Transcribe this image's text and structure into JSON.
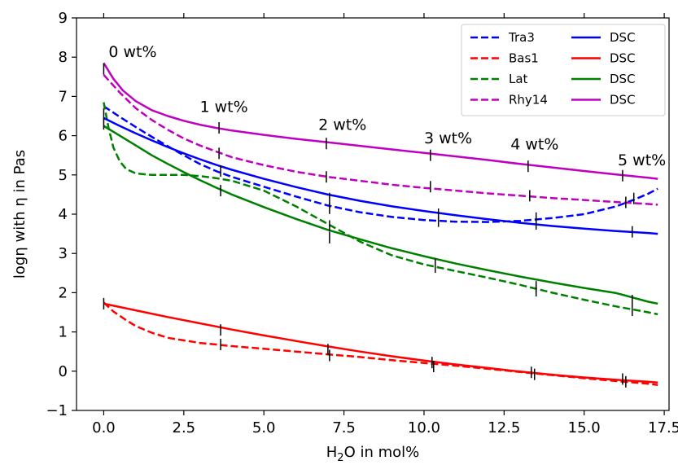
{
  "chart_data": {
    "type": "line",
    "xlabel": "H2O in mol%",
    "xlabel_parts": {
      "pre": "H",
      "sub": "2",
      "post": "O in mol%"
    },
    "ylabel": "logη with η in Pas",
    "xlim": [
      -0.85,
      17.65
    ],
    "ylim": [
      -1,
      9
    ],
    "xticks": [
      0.0,
      2.5,
      5.0,
      7.5,
      10.0,
      12.5,
      15.0,
      17.5
    ],
    "xtick_labels": [
      "0.0",
      "2.5",
      "5.0",
      "7.5",
      "10.0",
      "12.5",
      "15.0",
      "17.5"
    ],
    "yticks": [
      -1,
      0,
      1,
      2,
      3,
      4,
      5,
      6,
      7,
      8,
      9
    ],
    "ytick_labels": [
      "−1",
      "0",
      "1",
      "2",
      "3",
      "4",
      "5",
      "6",
      "7",
      "8",
      "9"
    ],
    "colors": {
      "blue": "#0000ff",
      "red": "#ff0000",
      "green": "#008000",
      "magenta": "#bf00bf"
    },
    "series": [
      {
        "name": "Tra3",
        "color": "blue",
        "dash": true,
        "x": [
          0,
          0.5,
          1,
          1.5,
          2,
          2.5,
          3,
          3.5,
          4,
          5,
          6,
          7,
          8,
          9,
          10,
          11,
          12,
          13,
          14,
          15,
          16,
          16.5,
          17,
          17.3
        ],
        "y": [
          6.75,
          6.48,
          6.22,
          5.97,
          5.73,
          5.5,
          5.28,
          5.1,
          4.95,
          4.7,
          4.45,
          4.22,
          4.05,
          3.93,
          3.85,
          3.81,
          3.8,
          3.83,
          3.9,
          4.0,
          4.2,
          4.35,
          4.52,
          4.65
        ]
      },
      {
        "name": "Bas1",
        "color": "red",
        "dash": true,
        "x": [
          0,
          0.3,
          0.7,
          1,
          1.5,
          2,
          3,
          4,
          5,
          6,
          7,
          8,
          9,
          10,
          11,
          12,
          13,
          14,
          15,
          16,
          17,
          17.3
        ],
        "y": [
          1.75,
          1.52,
          1.3,
          1.15,
          0.98,
          0.85,
          0.72,
          0.64,
          0.57,
          0.5,
          0.43,
          0.36,
          0.28,
          0.21,
          0.14,
          0.06,
          -0.02,
          -0.1,
          -0.18,
          -0.25,
          -0.32,
          -0.35
        ]
      },
      {
        "name": "Lat",
        "color": "green",
        "dash": true,
        "x": [
          0,
          0.15,
          0.3,
          0.5,
          0.7,
          1,
          1.5,
          2,
          2.5,
          3,
          3.5,
          4,
          5,
          6,
          7,
          8,
          9,
          10,
          11,
          12,
          13,
          14,
          15,
          16,
          17,
          17.3
        ],
        "y": [
          6.85,
          6.2,
          5.7,
          5.35,
          5.15,
          5.04,
          5.0,
          5.0,
          5.0,
          4.97,
          4.92,
          4.85,
          4.6,
          4.2,
          3.75,
          3.3,
          2.95,
          2.72,
          2.55,
          2.38,
          2.2,
          2.0,
          1.82,
          1.65,
          1.5,
          1.45
        ]
      },
      {
        "name": "Rhy14",
        "color": "magenta",
        "dash": true,
        "x": [
          0,
          0.5,
          1,
          1.5,
          2,
          2.5,
          3,
          3.5,
          4,
          5,
          6,
          7,
          8,
          9,
          10,
          11,
          12,
          13,
          14,
          15,
          16,
          17,
          17.3
        ],
        "y": [
          7.55,
          7.1,
          6.7,
          6.4,
          6.15,
          5.93,
          5.75,
          5.6,
          5.45,
          5.25,
          5.08,
          4.95,
          4.85,
          4.75,
          4.67,
          4.6,
          4.53,
          4.47,
          4.41,
          4.36,
          4.31,
          4.26,
          4.24
        ]
      },
      {
        "name": "DSC",
        "color": "blue",
        "dash": false,
        "x": [
          0,
          0.5,
          1,
          1.5,
          2,
          2.5,
          3,
          3.5,
          4,
          5,
          6,
          7,
          8,
          9,
          10,
          11,
          12,
          13,
          14,
          15,
          16,
          17,
          17.3
        ],
        "y": [
          6.45,
          6.25,
          6.06,
          5.88,
          5.71,
          5.55,
          5.4,
          5.26,
          5.13,
          4.9,
          4.69,
          4.5,
          4.34,
          4.2,
          4.08,
          3.97,
          3.87,
          3.78,
          3.7,
          3.63,
          3.57,
          3.52,
          3.5
        ]
      },
      {
        "name": "DSC",
        "color": "red",
        "dash": false,
        "x": [
          0,
          1,
          2,
          3,
          4,
          5,
          6,
          7,
          8,
          9,
          10,
          11,
          12,
          13,
          14,
          15,
          16,
          17,
          17.3
        ],
        "y": [
          1.72,
          1.55,
          1.38,
          1.22,
          1.06,
          0.91,
          0.77,
          0.63,
          0.5,
          0.38,
          0.27,
          0.17,
          0.08,
          -0.01,
          -0.09,
          -0.16,
          -0.22,
          -0.27,
          -0.29
        ]
      },
      {
        "name": "DSC",
        "color": "green",
        "dash": false,
        "x": [
          0,
          0.5,
          1,
          1.5,
          2,
          2.5,
          3,
          3.5,
          4,
          5,
          6,
          7,
          8,
          9,
          10,
          11,
          12,
          13,
          14,
          15,
          16,
          17,
          17.3
        ],
        "y": [
          6.25,
          6.0,
          5.75,
          5.5,
          5.28,
          5.07,
          4.87,
          4.68,
          4.5,
          4.18,
          3.88,
          3.6,
          3.36,
          3.13,
          2.93,
          2.74,
          2.57,
          2.41,
          2.26,
          2.12,
          1.99,
          1.77,
          1.72
        ]
      },
      {
        "name": "DSC",
        "color": "magenta",
        "dash": false,
        "x": [
          0,
          0.3,
          0.6,
          1,
          1.5,
          2,
          2.5,
          3,
          3.5,
          4,
          5,
          6,
          7,
          8,
          9,
          10,
          11,
          12,
          13,
          14,
          15,
          16,
          17,
          17.3
        ],
        "y": [
          7.85,
          7.45,
          7.15,
          6.88,
          6.65,
          6.5,
          6.38,
          6.28,
          6.2,
          6.13,
          6.02,
          5.92,
          5.83,
          5.74,
          5.65,
          5.56,
          5.47,
          5.38,
          5.28,
          5.19,
          5.1,
          5.01,
          4.93,
          4.9
        ]
      }
    ],
    "marker_ticks": [
      {
        "x": 0,
        "y": 7.7
      },
      {
        "x": 0,
        "y": 6.55
      },
      {
        "x": 0,
        "y": 6.3
      },
      {
        "x": 0,
        "y": 1.72
      },
      {
        "x": 3.6,
        "y": 6.2
      },
      {
        "x": 3.6,
        "y": 5.55
      },
      {
        "x": 3.65,
        "y": 5.1
      },
      {
        "x": 3.65,
        "y": 4.6
      },
      {
        "x": 3.65,
        "y": 1.05
      },
      {
        "x": 3.65,
        "y": 0.68
      },
      {
        "x": 6.95,
        "y": 5.8
      },
      {
        "x": 6.95,
        "y": 4.95
      },
      {
        "x": 7.05,
        "y": 4.4
      },
      {
        "x": 7.05,
        "y": 4.15
      },
      {
        "x": 7.05,
        "y": 3.7
      },
      {
        "x": 7.05,
        "y": 3.4
      },
      {
        "x": 7.0,
        "y": 0.55
      },
      {
        "x": 7.05,
        "y": 0.4
      },
      {
        "x": 10.2,
        "y": 5.5
      },
      {
        "x": 10.2,
        "y": 4.7
      },
      {
        "x": 10.45,
        "y": 4.0
      },
      {
        "x": 10.45,
        "y": 3.82
      },
      {
        "x": 10.35,
        "y": 2.72
      },
      {
        "x": 10.35,
        "y": 2.65
      },
      {
        "x": 10.25,
        "y": 0.22
      },
      {
        "x": 10.3,
        "y": 0.12
      },
      {
        "x": 13.25,
        "y": 5.22
      },
      {
        "x": 13.3,
        "y": 4.47
      },
      {
        "x": 13.5,
        "y": 3.75
      },
      {
        "x": 13.5,
        "y": 3.9
      },
      {
        "x": 13.5,
        "y": 2.15
      },
      {
        "x": 13.5,
        "y": 2.05
      },
      {
        "x": 13.35,
        "y": -0.03
      },
      {
        "x": 13.45,
        "y": -0.08
      },
      {
        "x": 16.2,
        "y": 4.98
      },
      {
        "x": 16.3,
        "y": 4.3
      },
      {
        "x": 16.55,
        "y": 4.4
      },
      {
        "x": 16.5,
        "y": 3.55
      },
      {
        "x": 16.5,
        "y": 1.8
      },
      {
        "x": 16.5,
        "y": 1.55
      },
      {
        "x": 16.2,
        "y": -0.2
      },
      {
        "x": 16.3,
        "y": -0.27
      }
    ],
    "annotations": [
      {
        "text": "0 wt%",
        "x": 0.15,
        "y": 8.0
      },
      {
        "text": "1 wt%",
        "x": 3.0,
        "y": 6.6
      },
      {
        "text": "2 wt%",
        "x": 6.7,
        "y": 6.15
      },
      {
        "text": "3 wt%",
        "x": 10.0,
        "y": 5.8
      },
      {
        "text": "4 wt%",
        "x": 12.7,
        "y": 5.65
      },
      {
        "text": "5 wt%",
        "x": 16.05,
        "y": 5.25
      }
    ],
    "grid": false,
    "legend": {
      "placement": "top-right",
      "columns": 2
    }
  }
}
